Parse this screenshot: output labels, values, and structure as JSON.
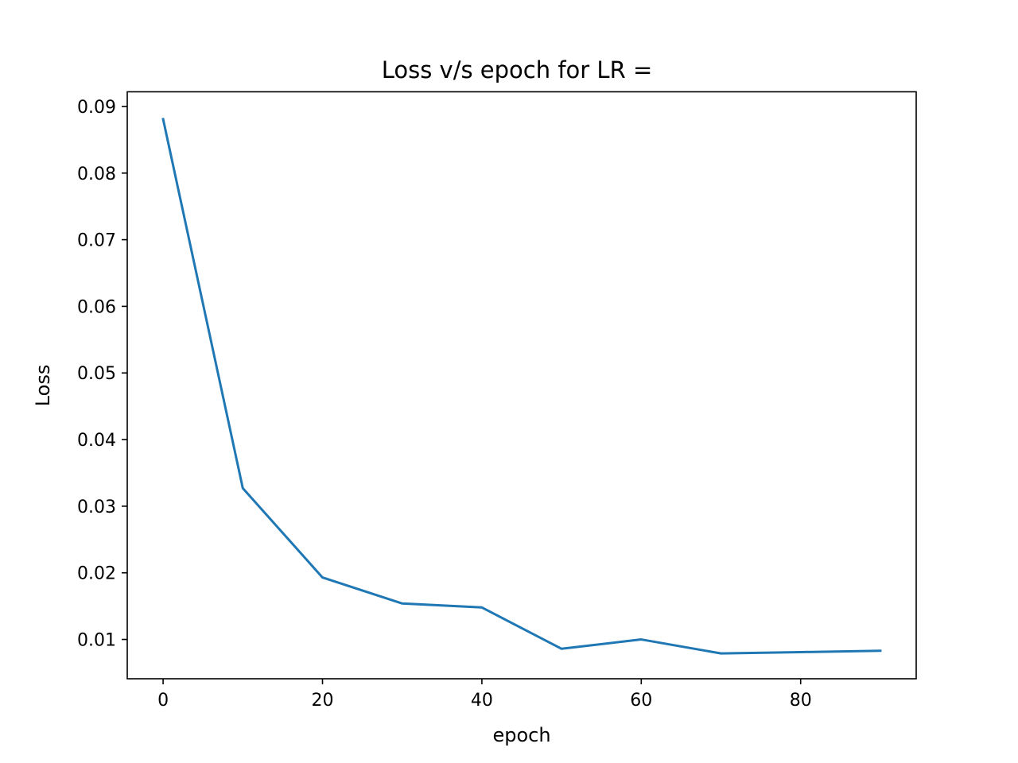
{
  "chart_data": {
    "type": "line",
    "title": "Loss v/s epoch for LR =",
    "xlabel": "epoch",
    "ylabel": "Loss",
    "xlim": [
      -4.5,
      94.5
    ],
    "ylim": [
      0.0041,
      0.0922
    ],
    "xticks": [
      0,
      20,
      40,
      60,
      80
    ],
    "xtick_labels": [
      "0",
      "20",
      "40",
      "60",
      "80"
    ],
    "yticks": [
      0.01,
      0.02,
      0.03,
      0.04,
      0.05,
      0.06,
      0.07,
      0.08,
      0.09
    ],
    "ytick_labels": [
      "0.01",
      "0.02",
      "0.03",
      "0.04",
      "0.05",
      "0.06",
      "0.07",
      "0.08",
      "0.09"
    ],
    "grid": false,
    "series": [
      {
        "color": "#1f77b4",
        "x": [
          0,
          10,
          20,
          30,
          40,
          50,
          60,
          70,
          80,
          90
        ],
        "y": [
          0.0881,
          0.0327,
          0.0193,
          0.0154,
          0.0148,
          0.0086,
          0.01,
          0.0079,
          0.0081,
          0.0083
        ]
      }
    ]
  }
}
